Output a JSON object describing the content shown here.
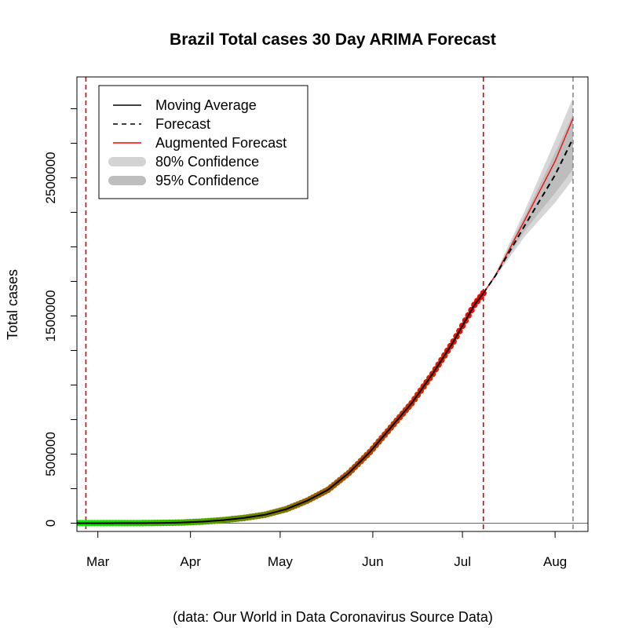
{
  "chart_data": {
    "type": "line",
    "title": "Brazil Total cases 30 Day ARIMA Forecast",
    "ylabel": "Total cases",
    "xlabel": "",
    "caption": "(data: Our World in Data Coronavirus Source Data)",
    "x_range": [
      "2020-02-23",
      "2020-08-12"
    ],
    "y_range": [
      -60000,
      3230000
    ],
    "x_ticks": [
      {
        "date": "2020-03-01",
        "label": "Mar"
      },
      {
        "date": "2020-04-01",
        "label": "Apr"
      },
      {
        "date": "2020-05-01",
        "label": "May"
      },
      {
        "date": "2020-06-01",
        "label": "Jun"
      },
      {
        "date": "2020-07-01",
        "label": "Jul"
      },
      {
        "date": "2020-08-01",
        "label": "Aug"
      }
    ],
    "y_ticks": [
      {
        "value": 0,
        "label": "0"
      },
      {
        "value": 250000,
        "label": ""
      },
      {
        "value": 500000,
        "label": "500000"
      },
      {
        "value": 750000,
        "label": ""
      },
      {
        "value": 1000000,
        "label": ""
      },
      {
        "value": 1250000,
        "label": ""
      },
      {
        "value": 1500000,
        "label": "1500000"
      },
      {
        "value": 1750000,
        "label": ""
      },
      {
        "value": 2000000,
        "label": ""
      },
      {
        "value": 2250000,
        "label": ""
      },
      {
        "value": 2500000,
        "label": "2500000"
      },
      {
        "value": 2750000,
        "label": ""
      },
      {
        "value": 3000000,
        "label": ""
      }
    ],
    "horizontal_reference": 0,
    "vertical_lines": [
      {
        "date": "2020-02-26",
        "color": "#dd0000"
      },
      {
        "date": "2020-07-08",
        "color": "#dd0000"
      },
      {
        "date": "2020-08-07",
        "color": "#888888"
      }
    ],
    "point_colors": {
      "start": "#00ee00",
      "end": "#ff0000"
    },
    "observed": {
      "name": "Moving Average",
      "points": [
        [
          "2020-02-23",
          0
        ],
        [
          "2020-03-01",
          2
        ],
        [
          "2020-03-08",
          25
        ],
        [
          "2020-03-15",
          200
        ],
        [
          "2020-03-22",
          1600
        ],
        [
          "2020-03-29",
          4300
        ],
        [
          "2020-04-05",
          11000
        ],
        [
          "2020-04-12",
          22000
        ],
        [
          "2020-04-19",
          38000
        ],
        [
          "2020-04-26",
          61000
        ],
        [
          "2020-05-03",
          101000
        ],
        [
          "2020-05-10",
          162000
        ],
        [
          "2020-05-17",
          241000
        ],
        [
          "2020-05-24",
          363000
        ],
        [
          "2020-05-31",
          514000
        ],
        [
          "2020-06-07",
          691000
        ],
        [
          "2020-06-14",
          868000
        ],
        [
          "2020-06-21",
          1080000
        ],
        [
          "2020-06-28",
          1315000
        ],
        [
          "2020-07-05",
          1580000
        ],
        [
          "2020-07-08",
          1665000
        ]
      ]
    },
    "forecast": {
      "name": "Forecast",
      "points": [
        [
          "2020-07-08",
          1665000
        ],
        [
          "2020-07-12",
          1790000
        ],
        [
          "2020-07-22",
          2160000
        ],
        [
          "2020-08-01",
          2520000
        ],
        [
          "2020-08-07",
          2785000
        ]
      ]
    },
    "augmented_forecast": {
      "name": "Augmented Forecast",
      "points": [
        [
          "2020-07-08",
          1665000
        ],
        [
          "2020-07-12",
          1790000
        ],
        [
          "2020-07-22",
          2200000
        ],
        [
          "2020-08-01",
          2620000
        ],
        [
          "2020-08-07",
          2930000
        ]
      ]
    },
    "confidence_80": {
      "name": "80% Confidence",
      "color": "#bdbdbd",
      "upper": [
        [
          "2020-07-12",
          1800000
        ],
        [
          "2020-07-22",
          2230000
        ],
        [
          "2020-08-01",
          2680000
        ],
        [
          "2020-08-07",
          2960000
        ]
      ],
      "lower": [
        [
          "2020-07-12",
          1785000
        ],
        [
          "2020-07-22",
          2120000
        ],
        [
          "2020-08-01",
          2390000
        ],
        [
          "2020-08-07",
          2560000
        ]
      ]
    },
    "confidence_95": {
      "name": "95% Confidence",
      "color": "#d6d6d6",
      "upper": [
        [
          "2020-07-12",
          1805000
        ],
        [
          "2020-07-22",
          2270000
        ],
        [
          "2020-08-01",
          2770000
        ],
        [
          "2020-08-07",
          3080000
        ]
      ],
      "lower": [
        [
          "2020-07-12",
          1780000
        ],
        [
          "2020-07-22",
          2080000
        ],
        [
          "2020-08-01",
          2320000
        ],
        [
          "2020-08-07",
          2490000
        ]
      ]
    },
    "legend": {
      "position": "top-left",
      "entries": [
        {
          "label": "Moving Average",
          "style": "solid",
          "color": "#000000"
        },
        {
          "label": "Forecast",
          "style": "dashed",
          "color": "#000000"
        },
        {
          "label": "Augmented Forecast",
          "style": "solid",
          "color": "#ff0000"
        },
        {
          "label": "80% Confidence",
          "style": "band",
          "color": "#d3d3d3"
        },
        {
          "label": "95% Confidence",
          "style": "band",
          "color": "#bebebe"
        }
      ]
    }
  }
}
